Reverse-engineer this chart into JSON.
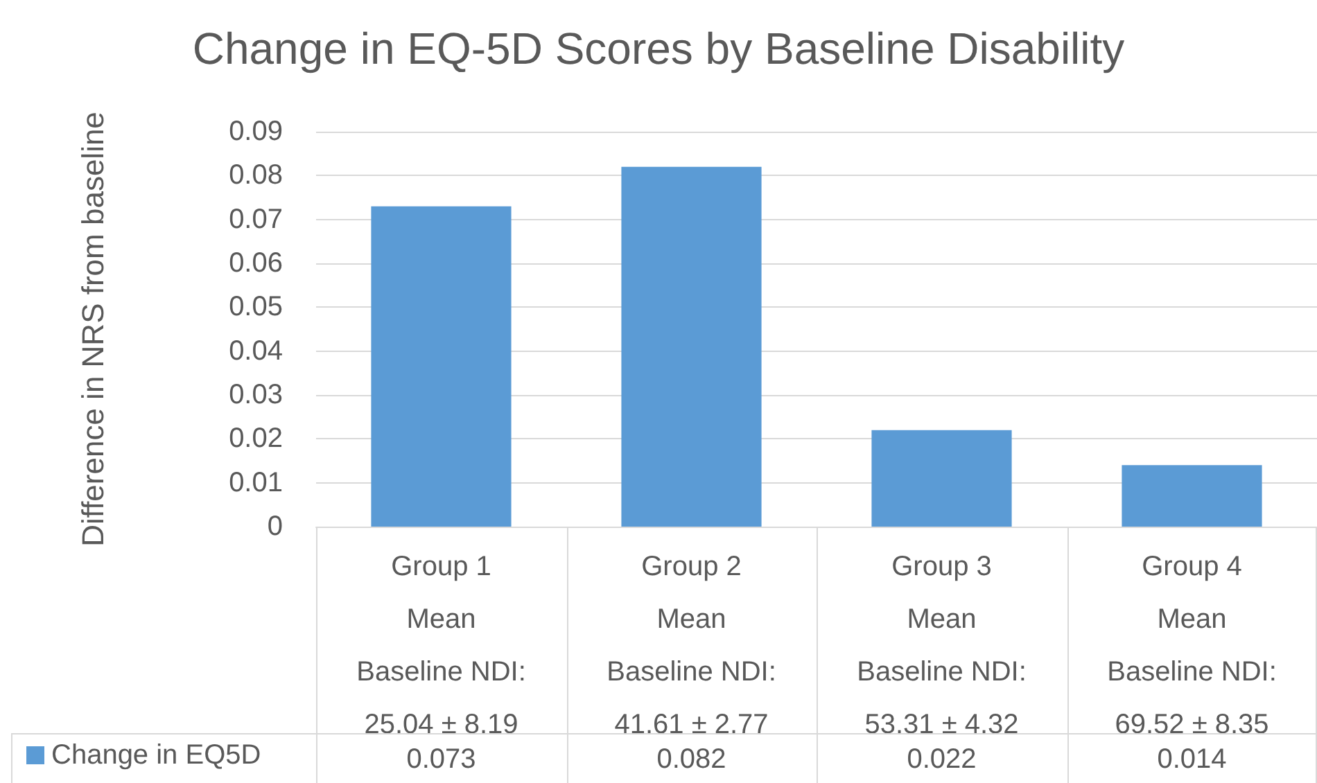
{
  "chart_data": {
    "type": "bar",
    "title": "Change in EQ-5D Scores by Baseline Disability",
    "ylabel": "Difference in NRS from baseline",
    "categories": [
      "Group 1\nMean\nBaseline NDI:\n25.04 ± 8.19",
      "Group 2\nMean\nBaseline NDI:\n41.61 ± 2.77",
      "Group 3\nMean\nBaseline NDI:\n53.31 ± 4.32",
      "Group 4\nMean\nBaseline NDI:\n69.52 ± 8.35"
    ],
    "series": [
      {
        "name": "Change in EQ5D",
        "color": "#5b9bd5",
        "values": [
          0.073,
          0.082,
          0.022,
          0.014
        ]
      }
    ],
    "ylim": [
      0,
      0.09
    ],
    "yticks": [
      0,
      0.01,
      0.02,
      0.03,
      0.04,
      0.05,
      0.06,
      0.07,
      0.08,
      0.09
    ],
    "grid": "y",
    "legend": "bottom left",
    "data_labels": true
  }
}
